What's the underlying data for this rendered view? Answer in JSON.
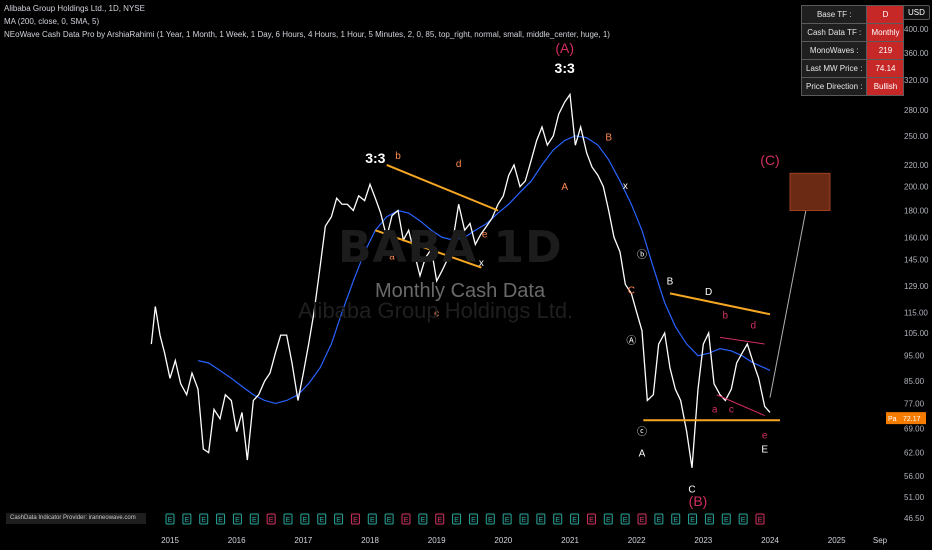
{
  "header": {
    "title_line": "Alibaba Group Holdings Ltd., 1D, NYSE",
    "ma_line": "MA (200, close, 0, SMA, 5)",
    "indicator_line": "NEoWave Cash Data Pro by ArshiaRahimi (1 Year, 1 Month, 1 Week, 1 Day, 6 Hours, 4 Hours, 1 Hour, 5 Minutes, 2, 0, 85, top_right, normal, small, middle_center, huge, 1)"
  },
  "currency_button": "USD",
  "watermark": {
    "symbol": "BABA 1D",
    "subtitle": "Monthly Cash Data",
    "company": "Alibaba Group Holdings Ltd."
  },
  "info_table": [
    {
      "label": "Base TF :",
      "value": "D"
    },
    {
      "label": "Cash Data TF :",
      "value": "Monthly"
    },
    {
      "label": "MonoWaves :",
      "value": "219"
    },
    {
      "label": "Last MW Price :",
      "value": "74.14"
    },
    {
      "label": "Price Direction :",
      "value": "Bullish"
    }
  ],
  "provider_text": "CashData Indicator Provider: iranneowave.com",
  "price_tags": {
    "last_left": "Pa",
    "last_right": "72.17"
  },
  "colors": {
    "background": "#000000",
    "price_line": "#ffffff",
    "ma_line": "#2962ff",
    "channel": "#f5a623",
    "label_orange": "#ff8a50",
    "label_red": "#d32f5f",
    "table_value": "#c62828",
    "target_box": "#6b2a14"
  },
  "chart_data": {
    "type": "line",
    "title": "Alibaba Group Holdings Ltd., 1D, NYSE",
    "y_scale": "log",
    "ylim": [
      46.5,
      420
    ],
    "y_ticks": [
      "400.00",
      "360.00",
      "320.00",
      "280.00",
      "250.00",
      "220.00",
      "200.00",
      "180.00",
      "160.00",
      "145.00",
      "129.00",
      "115.00",
      "105.00",
      "95.00",
      "85.00",
      "77.00",
      "69.00",
      "62.00",
      "56.00",
      "51.00",
      "46.50"
    ],
    "x_ticks": [
      "2015",
      "2016",
      "2017",
      "2018",
      "2019",
      "2020",
      "2021",
      "2022",
      "2023",
      "2024",
      "2025",
      "Sep"
    ],
    "x_range": [
      2014.7,
      2025.8
    ],
    "series": [
      {
        "type": "line",
        "x": [
          2014.72,
          2014.78,
          2014.85,
          2014.92,
          2015.0,
          2015.08,
          2015.16,
          2015.25,
          2015.33,
          2015.42,
          2015.5,
          2015.58,
          2015.66,
          2015.75,
          2015.83,
          2015.92,
          2016.0,
          2016.08,
          2016.16,
          2016.25,
          2016.33,
          2016.42,
          2016.5,
          2016.58,
          2016.66,
          2016.75,
          2016.83,
          2016.92,
          2017.0,
          2017.08,
          2017.16,
          2017.25,
          2017.33,
          2017.42,
          2017.5,
          2017.58,
          2017.66,
          2017.75,
          2017.83,
          2017.92,
          2018.0,
          2018.08,
          2018.16,
          2018.25,
          2018.33,
          2018.42,
          2018.5,
          2018.58,
          2018.66,
          2018.75,
          2018.83,
          2018.92,
          2019.0,
          2019.08,
          2019.16,
          2019.25,
          2019.33,
          2019.42,
          2019.5,
          2019.58,
          2019.66,
          2019.75,
          2019.83,
          2019.92,
          2020.0,
          2020.08,
          2020.16,
          2020.25,
          2020.33,
          2020.42,
          2020.5,
          2020.58,
          2020.66,
          2020.75,
          2020.83,
          2020.92,
          2021.0,
          2021.08,
          2021.16,
          2021.25,
          2021.33,
          2021.42,
          2021.5,
          2021.58,
          2021.66,
          2021.75,
          2021.83,
          2021.92,
          2022.0,
          2022.08,
          2022.16,
          2022.25,
          2022.33,
          2022.42,
          2022.5,
          2022.58,
          2022.66,
          2022.75,
          2022.83,
          2022.92,
          2023.0,
          2023.08,
          2023.16,
          2023.25,
          2023.33,
          2023.42,
          2023.5,
          2023.58,
          2023.66,
          2023.75,
          2023.83,
          2023.92,
          2024.0
        ],
        "y": [
          100,
          118,
          104,
          96,
          86,
          93,
          84,
          80,
          88,
          82,
          63,
          62,
          75,
          72,
          80,
          78,
          68,
          74,
          60,
          78,
          80,
          85,
          88,
          96,
          104,
          104,
          92,
          78,
          88,
          100,
          115,
          140,
          168,
          175,
          190,
          185,
          185,
          180,
          192,
          188,
          202,
          190,
          178,
          160,
          176,
          180,
          158,
          165,
          150,
          135,
          146,
          152,
          132,
          138,
          145,
          160,
          185,
          165,
          170,
          155,
          162,
          168,
          174,
          185,
          192,
          210,
          220,
          200,
          205,
          225,
          245,
          260,
          240,
          250,
          275,
          290,
          300,
          240,
          260,
          232,
          218,
          210,
          200,
          180,
          160,
          150,
          130,
          125,
          115,
          106,
          78,
          80,
          100,
          105,
          90,
          82,
          78,
          68,
          58,
          82,
          100,
          105,
          84,
          80,
          78,
          82,
          92,
          96,
          100,
          92,
          86,
          76,
          74
        ]
      },
      {
        "type": "line",
        "name": "MA (200, close, 0, SMA, 5)",
        "x": [
          2015.42,
          2015.58,
          2015.75,
          2015.92,
          2016.08,
          2016.25,
          2016.42,
          2016.58,
          2016.75,
          2016.92,
          2017.08,
          2017.25,
          2017.42,
          2017.58,
          2017.75,
          2017.92,
          2018.08,
          2018.25,
          2018.42,
          2018.58,
          2018.75,
          2018.92,
          2019.08,
          2019.25,
          2019.42,
          2019.58,
          2019.75,
          2019.92,
          2020.08,
          2020.25,
          2020.42,
          2020.58,
          2020.75,
          2020.92,
          2021.08,
          2021.25,
          2021.42,
          2021.58,
          2021.75,
          2021.92,
          2022.08,
          2022.25,
          2022.42,
          2022.58,
          2022.75,
          2022.92,
          2023.08,
          2023.25,
          2023.42,
          2023.58,
          2023.75,
          2023.92,
          2024.0
        ],
        "y": [
          93,
          92,
          89,
          86,
          83,
          80,
          78,
          77,
          78,
          80,
          84,
          90,
          100,
          115,
          132,
          150,
          165,
          175,
          180,
          178,
          172,
          165,
          160,
          158,
          160,
          165,
          170,
          178,
          185,
          195,
          205,
          220,
          235,
          245,
          250,
          248,
          240,
          225,
          205,
          185,
          165,
          140,
          120,
          108,
          100,
          95,
          96,
          98,
          97,
          95,
          92,
          90,
          89
        ]
      }
    ],
    "annotations": [
      {
        "text": "(A)",
        "x": 2020.92,
        "y": 360,
        "color": "red"
      },
      {
        "text": "3:3",
        "x": 2020.92,
        "y": 330,
        "color": "white"
      },
      {
        "text": "3:3",
        "x": 2018.08,
        "y": 222,
        "color": "white"
      },
      {
        "text": "b",
        "x": 2018.42,
        "y": 226,
        "color": "orange"
      },
      {
        "text": "d",
        "x": 2019.33,
        "y": 218,
        "color": "orange"
      },
      {
        "text": "a",
        "x": 2018.33,
        "y": 145,
        "color": "orange"
      },
      {
        "text": "c",
        "x": 2019.0,
        "y": 113,
        "color": "orange"
      },
      {
        "text": "e",
        "x": 2019.72,
        "y": 160,
        "color": "orange"
      },
      {
        "text": "x",
        "x": 2019.67,
        "y": 141,
        "color": "white"
      },
      {
        "text": "B",
        "x": 2021.58,
        "y": 245,
        "color": "orange"
      },
      {
        "text": "A",
        "x": 2020.92,
        "y": 197,
        "color": "orange"
      },
      {
        "text": "x",
        "x": 2021.83,
        "y": 198,
        "color": "white"
      },
      {
        "text": "C",
        "x": 2021.92,
        "y": 125,
        "color": "orange"
      },
      {
        "text": "ⓑ",
        "x": 2022.08,
        "y": 146,
        "color": "white"
      },
      {
        "text": "Ⓐ",
        "x": 2021.92,
        "y": 100,
        "color": "white"
      },
      {
        "text": "ⓒ",
        "x": 2022.08,
        "y": 67,
        "color": "white"
      },
      {
        "text": "A",
        "x": 2022.08,
        "y": 61,
        "color": "white"
      },
      {
        "text": "B",
        "x": 2022.5,
        "y": 130,
        "color": "white"
      },
      {
        "text": "D",
        "x": 2023.08,
        "y": 124,
        "color": "white"
      },
      {
        "text": "C",
        "x": 2022.83,
        "y": 52,
        "color": "white"
      },
      {
        "text": "(B)",
        "x": 2022.92,
        "y": 49,
        "color": "red"
      },
      {
        "text": "b",
        "x": 2023.33,
        "y": 112,
        "color": "red"
      },
      {
        "text": "d",
        "x": 2023.75,
        "y": 107,
        "color": "red"
      },
      {
        "text": "a",
        "x": 2023.17,
        "y": 74,
        "color": "red"
      },
      {
        "text": "c",
        "x": 2023.42,
        "y": 74,
        "color": "red"
      },
      {
        "text": "e",
        "x": 2023.92,
        "y": 66,
        "color": "red"
      },
      {
        "text": "E",
        "x": 2023.92,
        "y": 62,
        "color": "white"
      },
      {
        "text": "(C)",
        "x": 2024.0,
        "y": 220,
        "color": "red"
      }
    ],
    "event_markers": [
      "E",
      "E",
      "E",
      "E",
      "E",
      "E",
      "E",
      "E",
      "E",
      "E",
      "E",
      "E",
      "E",
      "E",
      "E",
      "E",
      "E",
      "E",
      "E",
      "E",
      "E",
      "E",
      "E",
      "E",
      "E",
      "E",
      "E",
      "E",
      "E",
      "E",
      "E",
      "E",
      "E",
      "E",
      "E",
      "E"
    ],
    "grid": false
  }
}
